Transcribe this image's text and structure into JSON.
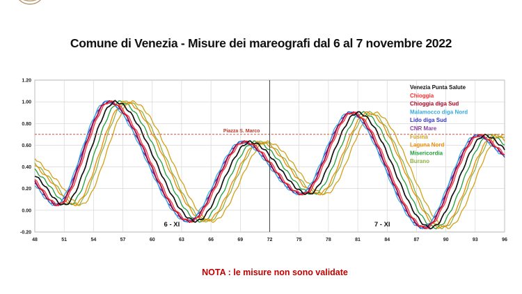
{
  "title": "Comune di Venezia  -  Misure dei mareografi dal 6 al 7 novembre 2022",
  "note": "NOTA :  le misure non sono validate",
  "chart_data": {
    "type": "line",
    "x_ticks": [
      48,
      51,
      54,
      57,
      60,
      63,
      66,
      69,
      72,
      75,
      78,
      81,
      84,
      87,
      90,
      93,
      96
    ],
    "y_ticks": [
      "-0.20",
      "0.00",
      "0.20",
      "0.40",
      "0.60",
      "0.80",
      "1.00",
      "1.20"
    ],
    "xlim": [
      48,
      96
    ],
    "ylim": [
      -0.2,
      1.2
    ],
    "grid": true,
    "legend_position": "top-right",
    "day_separator_x": 72,
    "day_labels": [
      {
        "x": 62,
        "y": -0.15,
        "text": "6 - XI"
      },
      {
        "x": 83.5,
        "y": -0.15,
        "text": "7 - XI"
      }
    ],
    "reference_line": {
      "y": 0.7,
      "label": "Piazza S. Marco",
      "color": "#c0392b"
    },
    "series_shape_key": {
      "x": [
        48,
        50.5,
        55.7,
        64,
        69.5,
        75.5,
        80.5,
        88,
        93.5,
        96
      ],
      "y": [
        0.28,
        0.05,
        1.0,
        -0.1,
        0.63,
        0.15,
        0.9,
        -0.16,
        0.69,
        0.52
      ]
    },
    "series": [
      {
        "name": "Venezia Punta Salute",
        "color": "#111111",
        "lag_hours": 0.5
      },
      {
        "name": "Chioggia",
        "color": "#ff2d2d",
        "lag_hours": 0.0
      },
      {
        "name": "Chioggia diga Sud",
        "color": "#b00020",
        "lag_hours": -0.2
      },
      {
        "name": "Malamocco diga Nord",
        "color": "#36a9e1",
        "lag_hours": -0.4
      },
      {
        "name": "Lido diga Sud",
        "color": "#3333cc",
        "lag_hours": -0.3
      },
      {
        "name": "CNR Mare",
        "color": "#8b3fa8",
        "lag_hours": -0.15
      },
      {
        "name": "Fusina",
        "color": "#d4a017",
        "lag_hours": 2.2
      },
      {
        "name": "Laguna Nord",
        "color": "#ee8a00",
        "lag_hours": 1.5
      },
      {
        "name": "Misericordia",
        "color": "#1f9e3a",
        "lag_hours": 1.0
      },
      {
        "name": "Burano",
        "color": "#8fb045",
        "lag_hours": 1.7
      }
    ]
  }
}
